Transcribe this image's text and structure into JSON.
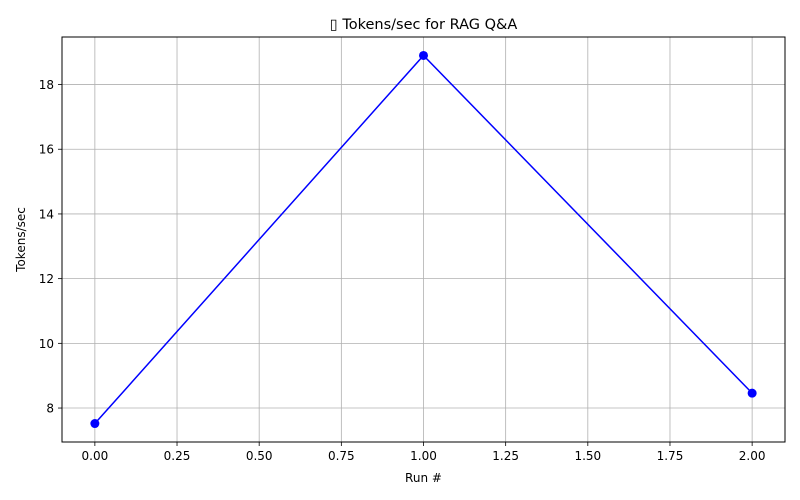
{
  "chart_data": {
    "type": "line",
    "title": "▯ Tokens/sec for RAG Q&A",
    "xlabel": "Run #",
    "ylabel": "Tokens/sec",
    "x": [
      0,
      1,
      2
    ],
    "series": [
      {
        "values": [
          7.52,
          18.9,
          8.46
        ],
        "color": "#0000ff",
        "marker": "circle"
      }
    ],
    "xlim": [
      -0.1,
      2.1
    ],
    "ylim": [
      6.95,
      19.47
    ],
    "xticks": [
      0.0,
      0.25,
      0.5,
      0.75,
      1.0,
      1.25,
      1.5,
      1.75,
      2.0
    ],
    "xtick_labels": [
      "0.00",
      "0.25",
      "0.50",
      "0.75",
      "1.00",
      "1.25",
      "1.50",
      "1.75",
      "2.00"
    ],
    "yticks": [
      8,
      10,
      12,
      14,
      16,
      18
    ],
    "ytick_labels": [
      "8",
      "10",
      "12",
      "14",
      "16",
      "18"
    ],
    "grid": true,
    "grid_color": "#b0b0b0",
    "legend": "none"
  }
}
